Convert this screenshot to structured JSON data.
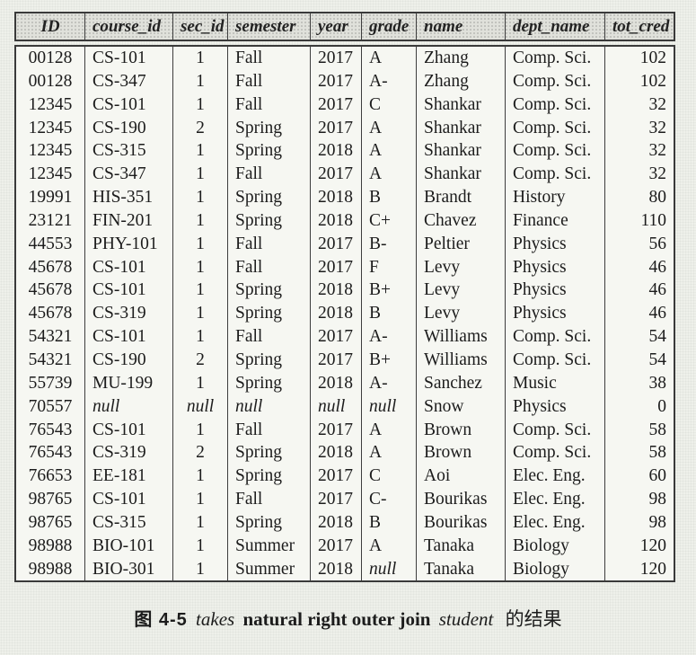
{
  "table": {
    "columns": [
      {
        "key": "id",
        "label": "ID"
      },
      {
        "key": "course-id",
        "label": "course_id"
      },
      {
        "key": "sec-id",
        "label": "sec_id"
      },
      {
        "key": "semester",
        "label": "semester"
      },
      {
        "key": "year",
        "label": "year"
      },
      {
        "key": "grade",
        "label": "grade"
      },
      {
        "key": "name",
        "label": "name"
      },
      {
        "key": "dept-name",
        "label": "dept_name"
      },
      {
        "key": "tot-cred",
        "label": "tot_cred"
      }
    ],
    "rows": [
      [
        "00128",
        "CS-101",
        "1",
        "Fall",
        "2017",
        "A",
        "Zhang",
        "Comp. Sci.",
        "102"
      ],
      [
        "00128",
        "CS-347",
        "1",
        "Fall",
        "2017",
        "A-",
        "Zhang",
        "Comp. Sci.",
        "102"
      ],
      [
        "12345",
        "CS-101",
        "1",
        "Fall",
        "2017",
        "C",
        "Shankar",
        "Comp. Sci.",
        "32"
      ],
      [
        "12345",
        "CS-190",
        "2",
        "Spring",
        "2017",
        "A",
        "Shankar",
        "Comp. Sci.",
        "32"
      ],
      [
        "12345",
        "CS-315",
        "1",
        "Spring",
        "2018",
        "A",
        "Shankar",
        "Comp. Sci.",
        "32"
      ],
      [
        "12345",
        "CS-347",
        "1",
        "Fall",
        "2017",
        "A",
        "Shankar",
        "Comp. Sci.",
        "32"
      ],
      [
        "19991",
        "HIS-351",
        "1",
        "Spring",
        "2018",
        "B",
        "Brandt",
        "History",
        "80"
      ],
      [
        "23121",
        "FIN-201",
        "1",
        "Spring",
        "2018",
        "C+",
        "Chavez",
        "Finance",
        "110"
      ],
      [
        "44553",
        "PHY-101",
        "1",
        "Fall",
        "2017",
        "B-",
        "Peltier",
        "Physics",
        "56"
      ],
      [
        "45678",
        "CS-101",
        "1",
        "Fall",
        "2017",
        "F",
        "Levy",
        "Physics",
        "46"
      ],
      [
        "45678",
        "CS-101",
        "1",
        "Spring",
        "2018",
        "B+",
        "Levy",
        "Physics",
        "46"
      ],
      [
        "45678",
        "CS-319",
        "1",
        "Spring",
        "2018",
        "B",
        "Levy",
        "Physics",
        "46"
      ],
      [
        "54321",
        "CS-101",
        "1",
        "Fall",
        "2017",
        "A-",
        "Williams",
        "Comp. Sci.",
        "54"
      ],
      [
        "54321",
        "CS-190",
        "2",
        "Spring",
        "2017",
        "B+",
        "Williams",
        "Comp. Sci.",
        "54"
      ],
      [
        "55739",
        "MU-199",
        "1",
        "Spring",
        "2018",
        "A-",
        "Sanchez",
        "Music",
        "38"
      ],
      [
        "70557",
        "null",
        "null",
        "null",
        "null",
        "null",
        "Snow",
        "Physics",
        "0"
      ],
      [
        "76543",
        "CS-101",
        "1",
        "Fall",
        "2017",
        "A",
        "Brown",
        "Comp. Sci.",
        "58"
      ],
      [
        "76543",
        "CS-319",
        "2",
        "Spring",
        "2018",
        "A",
        "Brown",
        "Comp. Sci.",
        "58"
      ],
      [
        "76653",
        "EE-181",
        "1",
        "Spring",
        "2017",
        "C",
        "Aoi",
        "Elec. Eng.",
        "60"
      ],
      [
        "98765",
        "CS-101",
        "1",
        "Fall",
        "2017",
        "C-",
        "Bourikas",
        "Elec. Eng.",
        "98"
      ],
      [
        "98765",
        "CS-315",
        "1",
        "Spring",
        "2018",
        "B",
        "Bourikas",
        "Elec. Eng.",
        "98"
      ],
      [
        "98988",
        "BIO-101",
        "1",
        "Summer",
        "2017",
        "A",
        "Tanaka",
        "Biology",
        "120"
      ],
      [
        "98988",
        "BIO-301",
        "1",
        "Summer",
        "2018",
        "null",
        "Tanaka",
        "Biology",
        "120"
      ]
    ]
  },
  "caption": {
    "figure_label": "图 4-5",
    "relation_left": "takes",
    "operator": "natural right outer join",
    "relation_right": "student",
    "suffix": "的结果"
  }
}
